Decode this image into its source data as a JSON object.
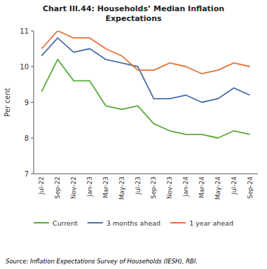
{
  "chart_data": {
    "type": "line",
    "title": "Chart III.44: Households’ Median Inflation\nExpectations",
    "y_label": "Per cent",
    "source": "Source: Inflation Expectations Survey of Households (IESH), RBI.",
    "categories": [
      "Jul-22",
      "Sep-22",
      "Nov-22",
      "Jan-23",
      "Mar-23",
      "May-23",
      "Jul-23",
      "Sep-23",
      "Nov-23",
      "Jan-24",
      "Mar-24",
      "May-24",
      "Jul-24",
      "Sep-24"
    ],
    "series": [
      {
        "name": "Current",
        "color": "#5aaa3a",
        "values": [
          9.3,
          10.2,
          9.6,
          9.6,
          8.9,
          8.8,
          8.9,
          8.4,
          8.2,
          8.1,
          8.1,
          8.0,
          8.2,
          8.1
        ]
      },
      {
        "name": "3 months ahead",
        "color": "#4b6fa8",
        "values": [
          10.3,
          10.8,
          10.4,
          10.5,
          10.2,
          10.1,
          10.0,
          9.1,
          9.1,
          9.2,
          9.0,
          9.1,
          9.4,
          9.2
        ]
      },
      {
        "name": "1 year ahead",
        "color": "#e0733a",
        "values": [
          10.5,
          11.0,
          10.8,
          10.8,
          10.5,
          10.3,
          9.9,
          9.9,
          10.1,
          10.0,
          9.8,
          9.9,
          10.1,
          10.0
        ]
      }
    ],
    "ylim": [
      7,
      11
    ],
    "yticks": [
      7,
      8,
      9,
      10,
      11
    ],
    "grid": false,
    "legend": "bottom"
  }
}
